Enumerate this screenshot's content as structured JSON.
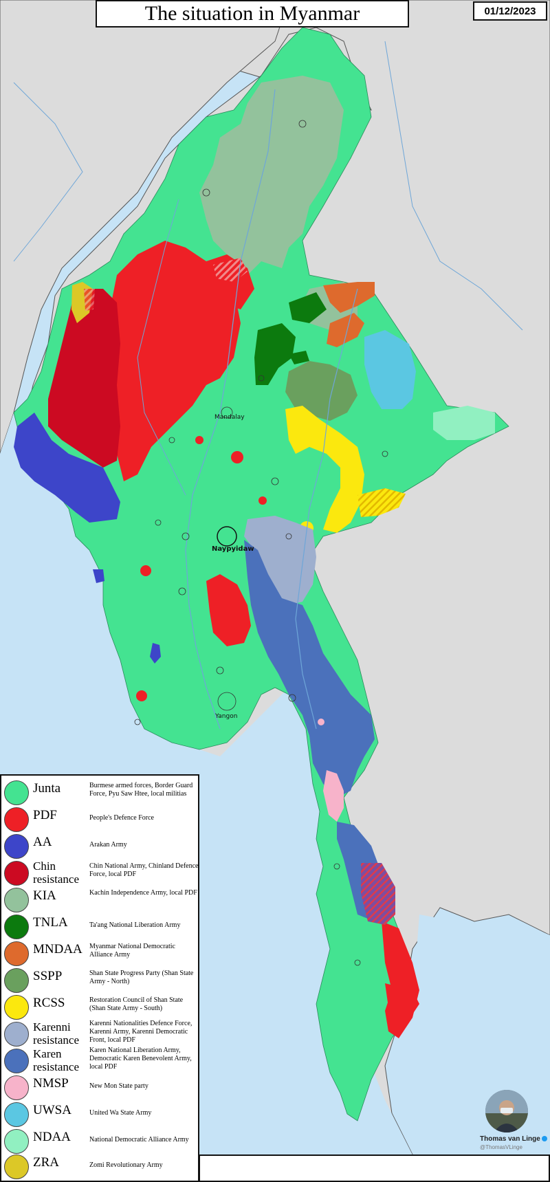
{
  "title": "The situation in Myanmar",
  "date": "01/12/2023",
  "colors": {
    "sea": "#c6e3f6",
    "land": "#dcdcdc",
    "junta": "#44e391",
    "pdf": "#ee2026",
    "aa": "#3d45c9",
    "chin": "#cc0a22",
    "kia": "#93c29c",
    "tnla": "#0c7a0e",
    "mndaa": "#de6a2d",
    "sspp": "#6aa05e",
    "rcss": "#fbe80e",
    "karenni": "#9eafce",
    "karen": "#4b71bb",
    "nmsp": "#f7b3ca",
    "uwsa": "#5bc7e2",
    "ndaa": "#91f0c1",
    "zra": "#dcc827"
  },
  "cities": {
    "capital": "Naypyidaw",
    "mandalay": "Mandalay",
    "yangon": "Yangon"
  },
  "legend": [
    {
      "name": "Junta",
      "description": "Burmese armed forces, Border Guard Force, Pyu Saw Htee, local militias",
      "color": "#44e391"
    },
    {
      "name": "PDF",
      "description": "People's Defence Force",
      "color": "#ee2026"
    },
    {
      "name": "AA",
      "description": "Arakan Army",
      "color": "#3d45c9"
    },
    {
      "name": "Chin resistance",
      "description": "Chin National Army, Chinland Defence Force, local PDF",
      "color": "#cc0a22"
    },
    {
      "name": "KIA",
      "description": "Kachin Independence Army, local PDF",
      "color": "#93c29c"
    },
    {
      "name": "TNLA",
      "description": "Ta'ang National Liberation Army",
      "color": "#0c7a0e"
    },
    {
      "name": "MNDAA",
      "description": "Myanmar National Democratic Alliance Army",
      "color": "#de6a2d"
    },
    {
      "name": "SSPP",
      "description": "Shan State Progress Party (Shan State Army - North)",
      "color": "#6aa05e"
    },
    {
      "name": "RCSS",
      "description": "Restoration Council of Shan State (Shan State Army - South)",
      "color": "#fbe80e"
    },
    {
      "name": "Karenni resistance",
      "description": "Karenni Nationalities Defence Force, Karenni Army, Karenni Democratic Front, local PDF",
      "color": "#9eafce"
    },
    {
      "name": "Karen resistance",
      "description": "Karen National Liberation Army, Democratic Karen Benevolent Army, local PDF",
      "color": "#4b71bb"
    },
    {
      "name": "NMSP",
      "description": "New Mon State party",
      "color": "#f7b3ca"
    },
    {
      "name": "UWSA",
      "description": "United Wa State Army",
      "color": "#5bc7e2"
    },
    {
      "name": "NDAA",
      "description": "National Democratic Alliance Army",
      "color": "#91f0c1"
    },
    {
      "name": "ZRA",
      "description": "Zomi Revolutionary Army",
      "color": "#dcc827"
    }
  ],
  "credit": {
    "name": "Thomas van Linge",
    "handle": "@ThomasVLinge"
  }
}
